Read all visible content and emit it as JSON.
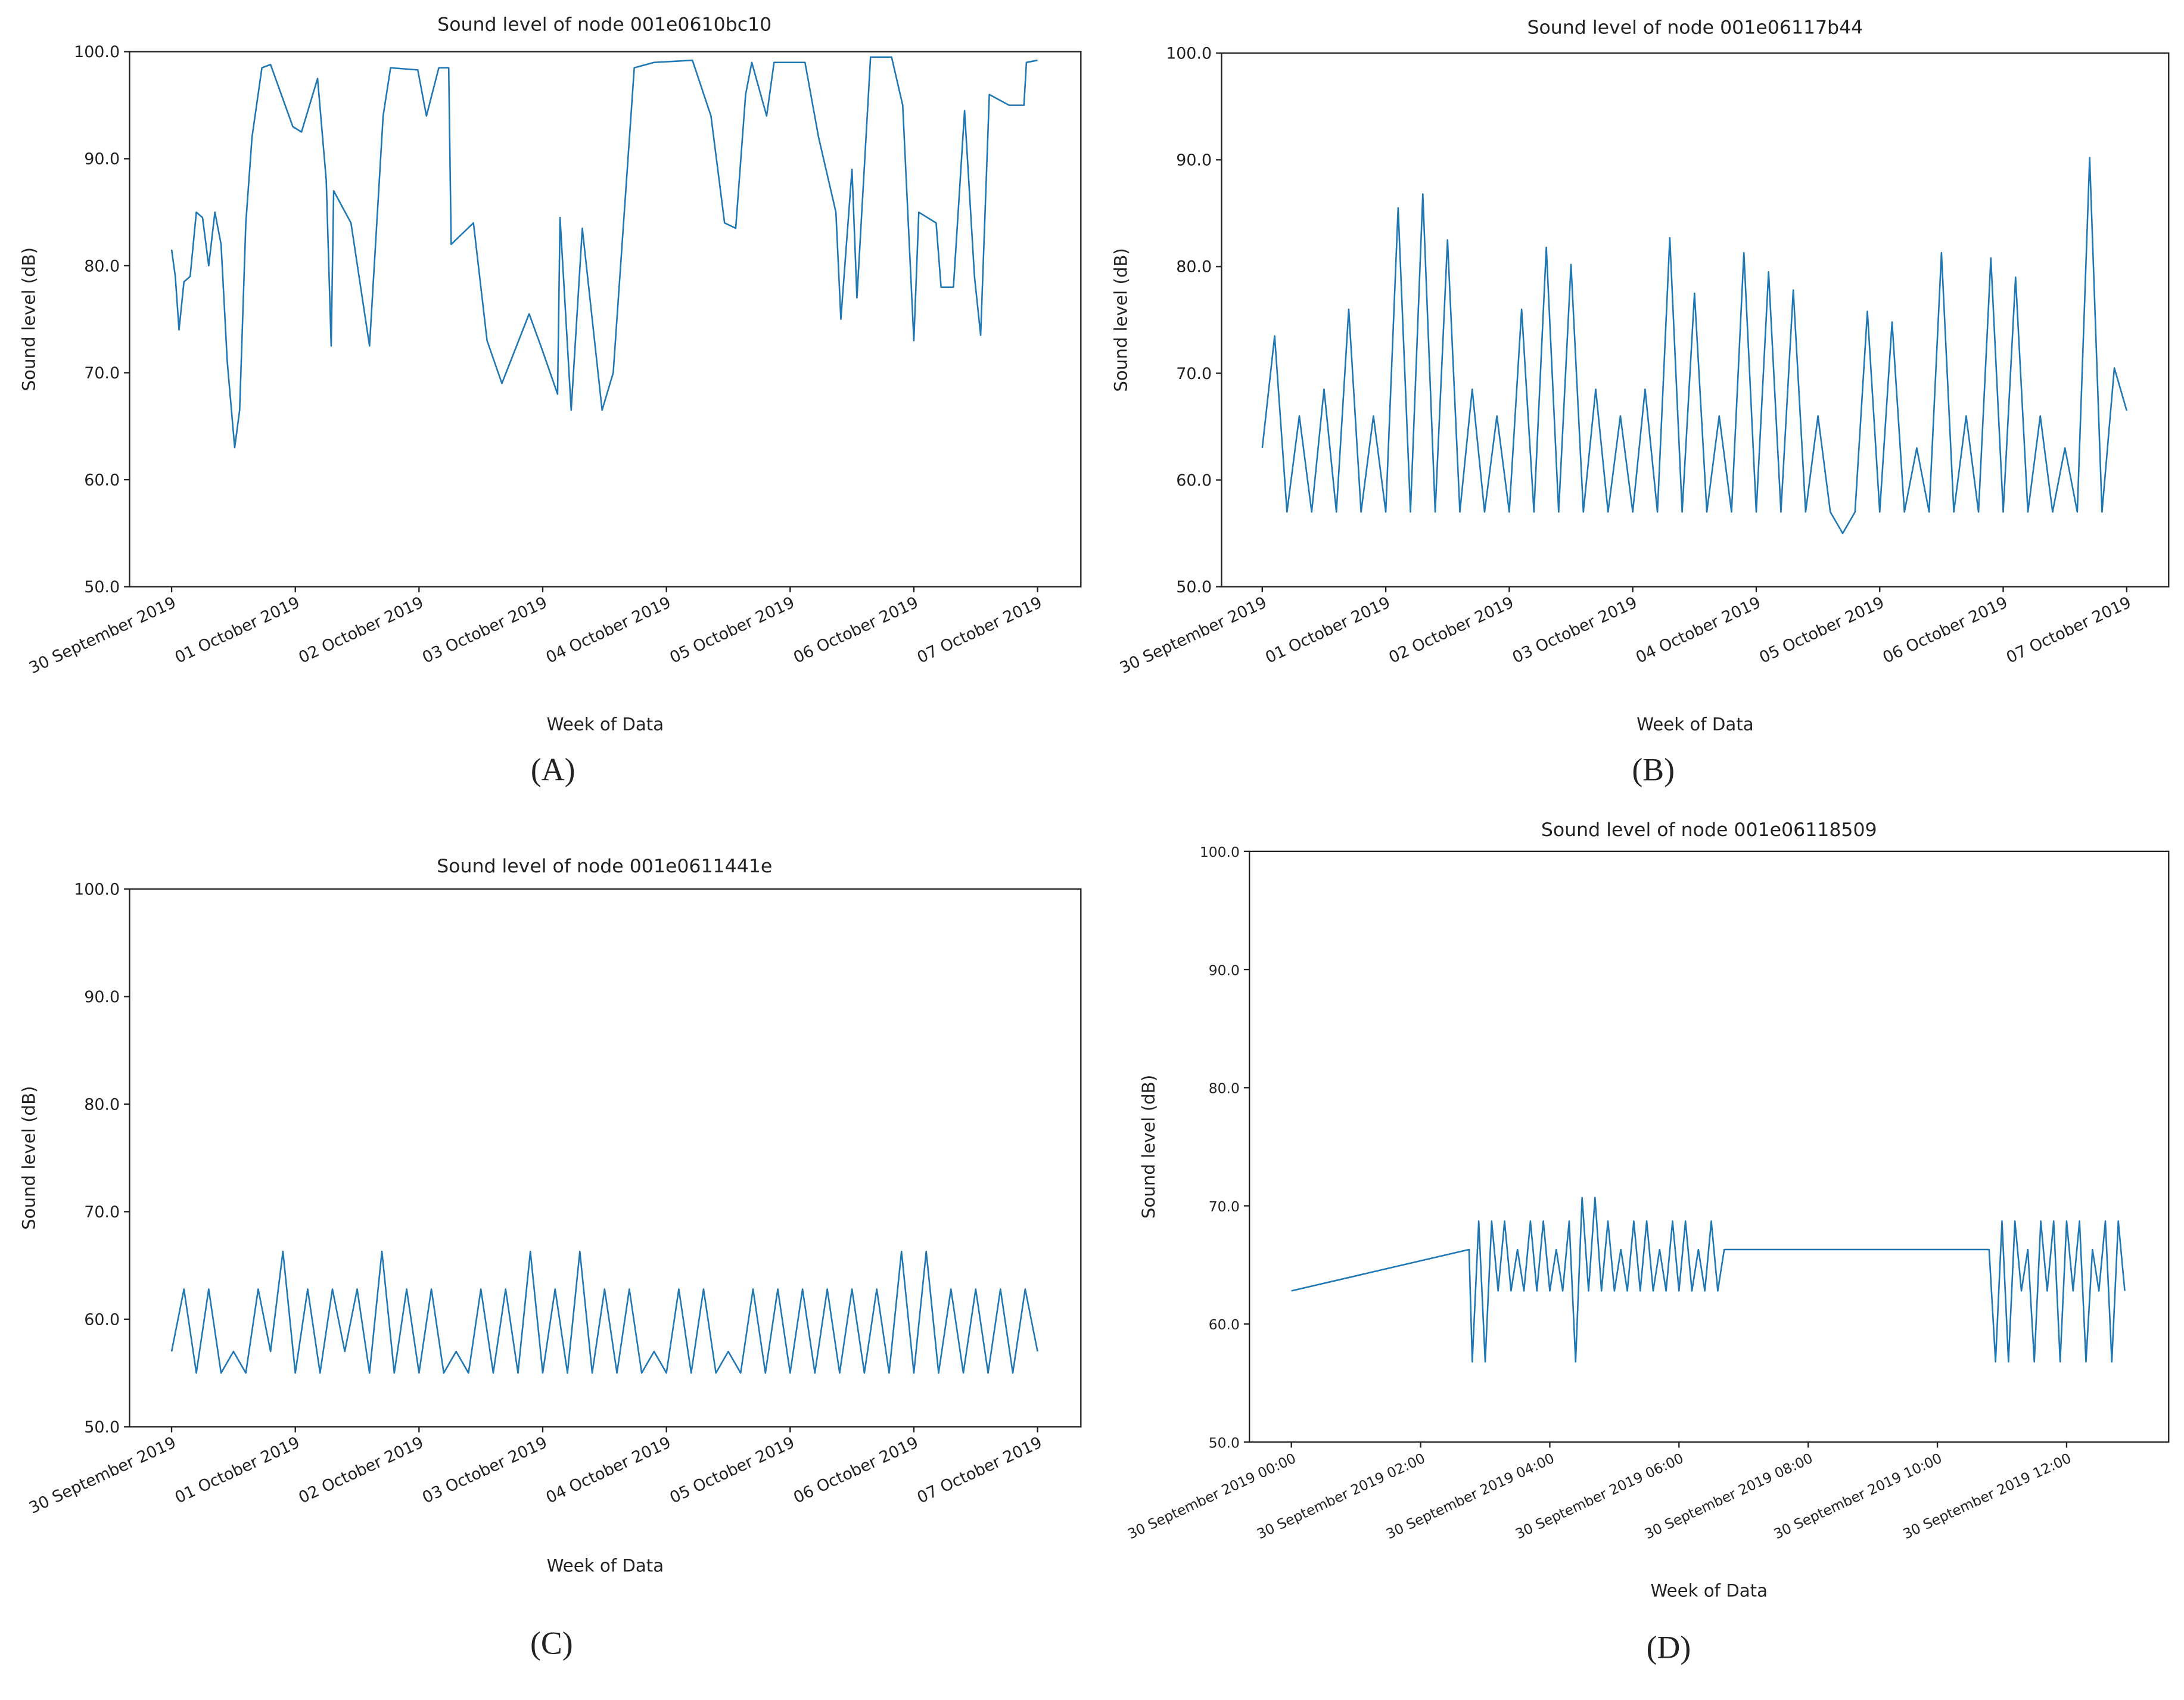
{
  "chart_data": [
    {
      "type": "line",
      "title": "Sound level of node 001e0610bc10",
      "xlabel": "Week of Data",
      "ylabel": "Sound level (dB)",
      "panel_label": "(A)",
      "color": "#1f77b4",
      "x": [
        0,
        0.03,
        0.06,
        0.1,
        0.15,
        0.2,
        0.25,
        0.3,
        0.35,
        0.4,
        0.45,
        0.51,
        0.55,
        0.6,
        0.65,
        0.73,
        0.8,
        0.98,
        1.05,
        1.18,
        1.25,
        1.29,
        1.31,
        1.45,
        1.6,
        1.71,
        1.77,
        1.99,
        2.06,
        2.16,
        2.24,
        2.26,
        2.44,
        2.55,
        2.67,
        2.89,
        3.0,
        3.12,
        3.14,
        3.23,
        3.32,
        3.48,
        3.57,
        3.74,
        3.9,
        4.21,
        4.36,
        4.47,
        4.56,
        4.64,
        4.69,
        4.81,
        4.87,
        5.12,
        5.23,
        5.37,
        5.41,
        5.5,
        5.54,
        5.65,
        5.82,
        5.91,
        6.0,
        6.04,
        6.18,
        6.22,
        6.32,
        6.41,
        6.49,
        6.54,
        6.61,
        6.77,
        6.89,
        6.91,
        7.0
      ],
      "values": [
        81.5,
        79,
        74,
        78.5,
        79,
        85,
        84.5,
        80,
        85,
        82,
        71,
        63,
        66.5,
        84,
        92,
        98.5,
        98.8,
        93,
        92.5,
        97.5,
        88,
        72.5,
        87,
        84,
        72.5,
        94,
        98.5,
        98.3,
        94,
        98.5,
        98.5,
        82,
        84,
        73,
        69,
        75.5,
        72,
        68,
        84.5,
        66.5,
        83.5,
        66.5,
        70,
        98.5,
        99,
        99.2,
        94,
        84,
        83.5,
        96,
        99,
        94,
        99,
        99,
        92,
        85,
        75,
        89,
        77,
        99.5,
        99.5,
        95,
        73,
        85,
        84,
        78,
        78,
        94.5,
        79,
        73.5,
        96,
        95,
        95,
        99,
        99.2
      ],
      "xlim": [
        -0.34,
        7.35
      ],
      "ylim": [
        50,
        100
      ],
      "xticks": [
        {
          "value": 0,
          "label": "30 September 2019"
        },
        {
          "value": 1,
          "label": "01 October 2019"
        },
        {
          "value": 2,
          "label": "02 October 2019"
        },
        {
          "value": 3,
          "label": "03 October 2019"
        },
        {
          "value": 4,
          "label": "04 October 2019"
        },
        {
          "value": 5,
          "label": "05 October 2019"
        },
        {
          "value": 6,
          "label": "06 October 2019"
        },
        {
          "value": 7,
          "label": "07 October 2019"
        }
      ],
      "yticks": [
        {
          "value": 50,
          "label": "50.0"
        },
        {
          "value": 60,
          "label": "60.0"
        },
        {
          "value": 70,
          "label": "70.0"
        },
        {
          "value": 80,
          "label": "80.0"
        },
        {
          "value": 90,
          "label": "90.0"
        },
        {
          "value": 100,
          "label": "100.0"
        }
      ]
    },
    {
      "type": "line",
      "title": "Sound level of node 001e06117b44",
      "xlabel": "Week of Data",
      "ylabel": "Sound level (dB)",
      "panel_label": "(B)",
      "color": "#1f77b4",
      "x": [
        0,
        0.1,
        0.2,
        0.3,
        0.4,
        0.5,
        0.6,
        0.7,
        0.8,
        0.9,
        1,
        1.1,
        1.2,
        1.3,
        1.4,
        1.5,
        1.6,
        1.7,
        1.8,
        1.9,
        2,
        2.1,
        2.2,
        2.3,
        2.4,
        2.5,
        2.6,
        2.7,
        2.8,
        2.9,
        3,
        3.1,
        3.2,
        3.3,
        3.4,
        3.5,
        3.6,
        3.7,
        3.8,
        3.9,
        4,
        4.1,
        4.2,
        4.3,
        4.4,
        4.5,
        4.6,
        4.7,
        4.8,
        4.9,
        5,
        5.1,
        5.2,
        5.3,
        5.4,
        5.5,
        5.6,
        5.7,
        5.8,
        5.9,
        6,
        6.1,
        6.2,
        6.3,
        6.4,
        6.5,
        6.6,
        6.7,
        6.8,
        6.9,
        7
      ],
      "values": [
        63,
        73.5,
        57,
        66,
        57,
        68.5,
        57,
        76,
        57,
        66,
        57,
        85.5,
        57,
        86.8,
        57,
        82.5,
        57,
        68.5,
        57,
        66,
        57,
        76,
        57,
        81.8,
        57,
        80.2,
        57,
        68.5,
        57,
        66,
        57,
        68.5,
        57,
        82.7,
        57,
        77.5,
        57,
        66,
        57,
        81.3,
        57,
        79.5,
        57,
        77.8,
        57,
        66,
        57,
        55,
        57,
        75.8,
        57,
        74.8,
        57,
        63,
        57,
        81.3,
        57,
        66,
        57,
        80.8,
        57,
        79,
        57,
        66,
        57,
        63,
        57,
        90.2,
        57,
        70.5,
        66.5
      ],
      "xlim": [
        -0.33,
        7.34
      ],
      "ylim": [
        50,
        100
      ],
      "xticks": [
        {
          "value": 0,
          "label": "30 September 2019"
        },
        {
          "value": 1,
          "label": "01 October 2019"
        },
        {
          "value": 2,
          "label": "02 October 2019"
        },
        {
          "value": 3,
          "label": "03 October 2019"
        },
        {
          "value": 4,
          "label": "04 October 2019"
        },
        {
          "value": 5,
          "label": "05 October 2019"
        },
        {
          "value": 6,
          "label": "06 October 2019"
        },
        {
          "value": 7,
          "label": "07 October 2019"
        }
      ],
      "yticks": [
        {
          "value": 50,
          "label": "50.0"
        },
        {
          "value": 60,
          "label": "60.0"
        },
        {
          "value": 70,
          "label": "70.0"
        },
        {
          "value": 80,
          "label": "80.0"
        },
        {
          "value": 90,
          "label": "90.0"
        },
        {
          "value": 100,
          "label": "100.0"
        }
      ]
    },
    {
      "type": "line",
      "title": "Sound level of node 001e0611441e",
      "xlabel": "Week of Data",
      "ylabel": "Sound level (dB)",
      "panel_label": "(C)",
      "color": "#1f77b4",
      "x": [
        0,
        0.1,
        0.2,
        0.3,
        0.4,
        0.5,
        0.6,
        0.7,
        0.8,
        0.9,
        1,
        1.1,
        1.2,
        1.3,
        1.4,
        1.5,
        1.6,
        1.7,
        1.8,
        1.9,
        2,
        2.1,
        2.2,
        2.3,
        2.4,
        2.5,
        2.6,
        2.7,
        2.8,
        2.9,
        3,
        3.1,
        3.2,
        3.3,
        3.4,
        3.5,
        3.6,
        3.7,
        3.8,
        3.9,
        4,
        4.1,
        4.2,
        4.3,
        4.4,
        4.5,
        4.6,
        4.7,
        4.8,
        4.9,
        5,
        5.1,
        5.2,
        5.3,
        5.4,
        5.5,
        5.6,
        5.7,
        5.8,
        5.9,
        6,
        6.1,
        6.2,
        6.3,
        6.4,
        6.5,
        6.6,
        6.7,
        6.8,
        6.9,
        7
      ],
      "values": [
        57,
        62.8,
        55,
        62.8,
        55,
        57,
        55,
        62.8,
        57,
        66.3,
        55,
        62.8,
        55,
        62.8,
        57,
        62.8,
        55,
        66.3,
        55,
        62.8,
        55,
        62.8,
        55,
        57,
        55,
        62.8,
        55,
        62.8,
        55,
        66.3,
        55,
        62.8,
        55,
        66.3,
        55,
        62.8,
        55,
        62.8,
        55,
        57,
        55,
        62.8,
        55,
        62.8,
        55,
        57,
        55,
        62.8,
        55,
        62.8,
        55,
        62.8,
        55,
        62.8,
        55,
        62.8,
        55,
        62.8,
        55,
        66.3,
        55,
        66.3,
        55,
        62.8,
        55,
        62.8,
        55,
        62.8,
        55,
        62.8,
        57
      ],
      "xlim": [
        -0.34,
        7.35
      ],
      "ylim": [
        50,
        100
      ],
      "xticks": [
        {
          "value": 0,
          "label": "30 September 2019"
        },
        {
          "value": 1,
          "label": "01 October 2019"
        },
        {
          "value": 2,
          "label": "02 October 2019"
        },
        {
          "value": 3,
          "label": "03 October 2019"
        },
        {
          "value": 4,
          "label": "04 October 2019"
        },
        {
          "value": 5,
          "label": "05 October 2019"
        },
        {
          "value": 6,
          "label": "06 October 2019"
        },
        {
          "value": 7,
          "label": "07 October 2019"
        }
      ],
      "yticks": [
        {
          "value": 50,
          "label": "50.0"
        },
        {
          "value": 60,
          "label": "60.0"
        },
        {
          "value": 70,
          "label": "70.0"
        },
        {
          "value": 80,
          "label": "80.0"
        },
        {
          "value": 90,
          "label": "90.0"
        },
        {
          "value": 100,
          "label": "100.0"
        }
      ]
    },
    {
      "type": "line",
      "title": "Sound level of node 001e06118509",
      "xlabel": "Week of Data",
      "ylabel": "Sound level (dB)",
      "panel_label": "(D)",
      "color": "#1f77b4",
      "x": [
        0,
        2.75,
        2.8,
        2.9,
        3.0,
        3.1,
        3.2,
        3.3,
        3.4,
        3.5,
        3.6,
        3.7,
        3.8,
        3.9,
        4.0,
        4.1,
        4.2,
        4.3,
        4.4,
        4.5,
        4.6,
        4.7,
        4.8,
        4.9,
        5.0,
        5.1,
        5.2,
        5.3,
        5.4,
        5.5,
        5.6,
        5.7,
        5.8,
        5.9,
        6.0,
        6.1,
        6.2,
        6.3,
        6.4,
        6.5,
        6.6,
        6.7,
        10.8,
        10.9,
        11.0,
        11.1,
        11.2,
        11.3,
        11.4,
        11.5,
        11.6,
        11.7,
        11.8,
        11.9,
        12.0,
        12.1,
        12.2,
        12.3,
        12.4,
        12.5,
        12.6,
        12.7,
        12.8,
        12.9
      ],
      "values": [
        62.8,
        66.3,
        56.8,
        68.7,
        56.8,
        68.7,
        62.8,
        68.7,
        62.8,
        66.3,
        62.8,
        68.7,
        62.8,
        68.7,
        62.8,
        66.3,
        62.8,
        68.7,
        56.8,
        70.7,
        62.8,
        70.7,
        62.8,
        68.7,
        62.8,
        66.3,
        62.8,
        68.7,
        62.8,
        68.7,
        62.8,
        66.3,
        62.8,
        68.7,
        62.8,
        68.7,
        62.8,
        66.3,
        62.8,
        68.7,
        62.8,
        66.3,
        66.3,
        56.8,
        68.7,
        56.8,
        68.7,
        62.8,
        66.3,
        56.8,
        68.7,
        62.8,
        68.7,
        56.8,
        68.7,
        62.8,
        68.7,
        56.8,
        66.3,
        62.8,
        68.7,
        56.8,
        68.7,
        62.8
      ],
      "xlim": [
        -0.65,
        13.58
      ],
      "ylim": [
        50,
        100
      ],
      "xticks": [
        {
          "value": 0,
          "label": "30 September 2019 00:00"
        },
        {
          "value": 2,
          "label": "30 September 2019 02:00"
        },
        {
          "value": 4,
          "label": "30 September 2019 04:00"
        },
        {
          "value": 6,
          "label": "30 September 2019 06:00"
        },
        {
          "value": 8,
          "label": "30 September 2019 08:00"
        },
        {
          "value": 10,
          "label": "30 September 2019 10:00"
        },
        {
          "value": 12,
          "label": "30 September 2019 12:00"
        }
      ],
      "yticks": [
        {
          "value": 50,
          "label": "50.0"
        },
        {
          "value": 60,
          "label": "60.0"
        },
        {
          "value": 70,
          "label": "70.0"
        },
        {
          "value": 80,
          "label": "80.0"
        },
        {
          "value": 90,
          "label": "90.0"
        },
        {
          "value": 100,
          "label": "100.0"
        }
      ]
    }
  ]
}
